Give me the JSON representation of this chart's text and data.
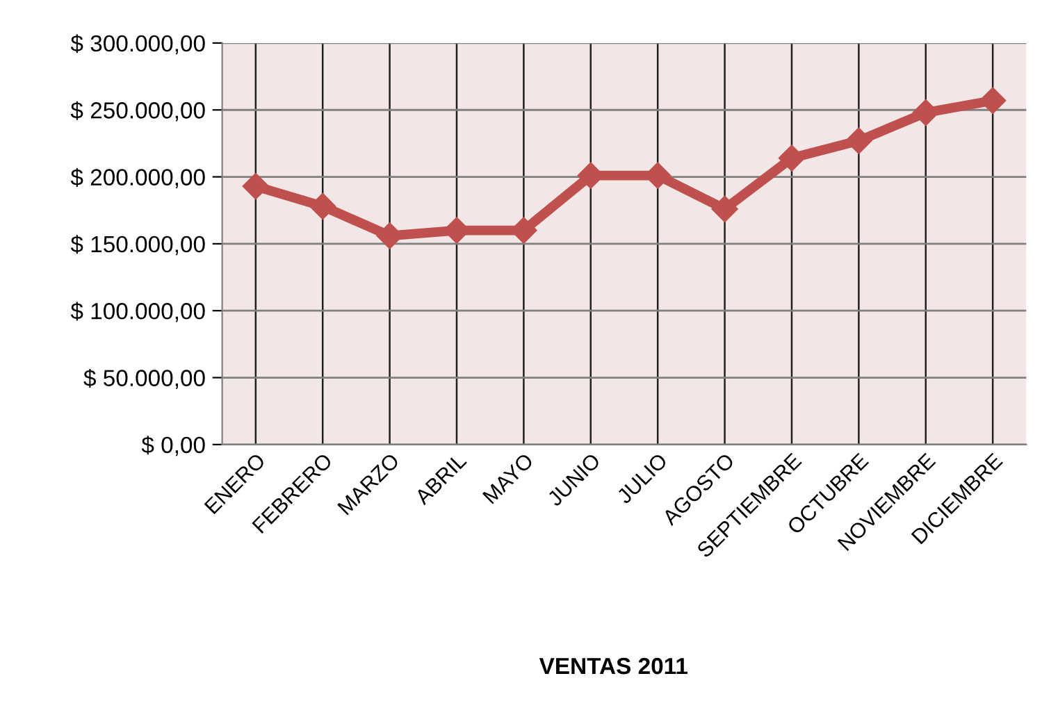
{
  "chart_data": {
    "type": "line",
    "title": "VENTAS 2011",
    "categories": [
      "ENERO",
      "FEBRERO",
      "MARZO",
      "ABRIL",
      "MAYO",
      "JUNIO",
      "JULIO",
      "AGOSTO",
      "SEPTIEMBRE",
      "OCTUBRE",
      "NOVIEMBRE",
      "DICIEMBRE"
    ],
    "series": [
      {
        "color": "#c0504d",
        "values": [
          193000,
          178000,
          156000,
          160000,
          160000,
          201000,
          201000,
          176000,
          214000,
          227000,
          248000,
          257000
        ]
      }
    ],
    "ylim": [
      0,
      300000
    ],
    "yticks": [
      {
        "value": 0,
        "label": "$ 0,00"
      },
      {
        "value": 50000,
        "label": "$ 50.000,00"
      },
      {
        "value": 100000,
        "label": "$ 100.000,00"
      },
      {
        "value": 150000,
        "label": "$ 150.000,00"
      },
      {
        "value": 200000,
        "label": "$ 200.000,00"
      },
      {
        "value": 250000,
        "label": "$ 250.000,00"
      },
      {
        "value": 300000,
        "label": "$ 300.000,00"
      }
    ],
    "grid": true,
    "marker": "diamond",
    "line_style": "solid",
    "legend": false
  }
}
